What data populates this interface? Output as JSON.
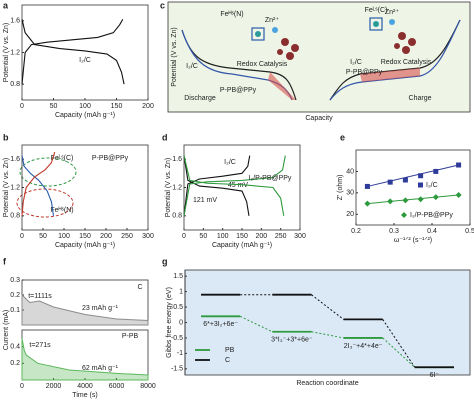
{
  "chart_data": [
    {
      "panel": "a",
      "type": "line",
      "x_label": "Capacity (mAh g⁻¹)",
      "y_label": "Potential (V vs. Zn)",
      "xlim": [
        0,
        200
      ],
      "xticks": [
        0,
        50,
        100,
        150,
        200
      ],
      "ylim": [
        0.6,
        1.8
      ],
      "yticks": [
        0.8,
        1.2,
        1.6
      ],
      "annotations": [
        "I₂/C"
      ],
      "series": [
        {
          "color": "#111111",
          "x": [
            0,
            5,
            15,
            40,
            80,
            120,
            145,
            155,
            160
          ],
          "values": [
            0.8,
            1.2,
            1.3,
            1.33,
            1.36,
            1.39,
            1.45,
            1.55,
            1.62
          ]
        },
        {
          "color": "#111111",
          "x": [
            0,
            5,
            20,
            60,
            100,
            135,
            150,
            158,
            162
          ],
          "values": [
            1.62,
            1.45,
            1.3,
            1.25,
            1.22,
            1.18,
            1.1,
            0.95,
            0.8
          ]
        }
      ]
    },
    {
      "panel": "b",
      "type": "line",
      "x_label": "Capacity (mAh g⁻¹)",
      "y_label": "Potential (V vs. Zn)",
      "xlim": [
        0,
        300
      ],
      "xticks": [
        0,
        50,
        100,
        150,
        200,
        250,
        300
      ],
      "ylim": [
        0.6,
        1.8
      ],
      "yticks": [
        0.8,
        1.2,
        1.6
      ],
      "annotations": [
        "P-PB@PPy",
        "Feᴸˢ(C)",
        "Feᴴˢ(N)"
      ],
      "series": [
        {
          "color": "#2a5caa",
          "x": [
            0,
            5,
            20,
            40,
            60,
            70,
            75
          ],
          "values": [
            1.65,
            1.5,
            1.4,
            1.3,
            1.15,
            1.0,
            0.8
          ]
        },
        {
          "color": "#c0392b",
          "x": [
            0,
            3,
            10,
            30,
            55,
            70,
            78
          ],
          "values": [
            0.8,
            1.0,
            1.2,
            1.35,
            1.45,
            1.55,
            1.7
          ]
        }
      ]
    },
    {
      "panel": "c",
      "type": "diagram",
      "x_label": "Capacity",
      "y_label": "Potential (V vs. Zn)",
      "labels": [
        "Feᴴˢ(N)",
        "Zn²⁺",
        "Redox Catalysis",
        "I₂/C",
        "P-PB@PPy",
        "Discharge",
        "Feᴸˢ(C)",
        "Zn²⁺",
        "I₂/C",
        "P-PB@PPy",
        "Redox Catalysis",
        "Charge"
      ]
    },
    {
      "panel": "d",
      "type": "line",
      "x_label": "Capacity (mAh g⁻¹)",
      "y_label": "Potential (V vs. Zn)",
      "xlim": [
        0,
        300
      ],
      "xticks": [
        0,
        50,
        100,
        150,
        200,
        250,
        300
      ],
      "ylim": [
        0.6,
        1.8
      ],
      "yticks": [
        0.8,
        1.2,
        1.6
      ],
      "annotations": [
        "45 mV",
        "121 mV"
      ],
      "series": [
        {
          "name": "I₂/C",
          "color": "#111111",
          "x": [
            0,
            10,
            40,
            100,
            150,
            165,
            170
          ],
          "values": [
            0.8,
            1.25,
            1.32,
            1.36,
            1.4,
            1.5,
            1.65
          ]
        },
        {
          "color": "#111111",
          "x": [
            0,
            10,
            40,
            100,
            150,
            162,
            168
          ],
          "values": [
            1.65,
            1.3,
            1.22,
            1.19,
            1.15,
            1.0,
            0.8
          ]
        },
        {
          "name": "I₂/P-PB@PPy",
          "color": "#2e9a3e",
          "x": [
            0,
            15,
            60,
            150,
            230,
            255,
            262
          ],
          "values": [
            0.8,
            1.25,
            1.28,
            1.3,
            1.34,
            1.45,
            1.65
          ]
        },
        {
          "color": "#2e9a3e",
          "x": [
            0,
            15,
            60,
            150,
            230,
            250,
            258
          ],
          "values": [
            1.65,
            1.3,
            1.26,
            1.24,
            1.2,
            1.05,
            0.8
          ]
        }
      ]
    },
    {
      "panel": "e",
      "type": "scatter",
      "x_label": "ω⁻¹ᐟ² (s⁻¹ᐟ²)",
      "y_label": "Z' (ohm)",
      "xlim": [
        0.2,
        0.5
      ],
      "xticks": [
        0.2,
        0.3,
        0.4,
        0.5
      ],
      "ylim": [
        15,
        50
      ],
      "yticks": [
        20,
        30,
        40
      ],
      "series": [
        {
          "name": "I₂/C",
          "color": "#2f3b9a",
          "marker": "square",
          "x": [
            0.23,
            0.29,
            0.33,
            0.37,
            0.41,
            0.47
          ],
          "values": [
            33,
            35,
            36,
            38,
            40,
            43
          ]
        },
        {
          "name": "I₂/P-PB@PPy",
          "color": "#2e9a3e",
          "marker": "diamond",
          "x": [
            0.23,
            0.29,
            0.33,
            0.37,
            0.41,
            0.47
          ],
          "values": [
            25,
            26,
            26.5,
            27,
            28,
            29
          ]
        }
      ]
    },
    {
      "panel": "f",
      "type": "area",
      "y_label": "Current (mA)",
      "xlim": [
        0,
        8000
      ],
      "ylim": [
        0,
        0.3
      ],
      "yticks": [
        0.1,
        0.2,
        0.3
      ],
      "annotations": [
        "t=1111s",
        "23 mAh g⁻¹",
        "C"
      ],
      "series": [
        {
          "color": "#8c8c8c",
          "x": [
            0,
            500,
            1111,
            2000,
            4000,
            6000,
            8000
          ],
          "values": [
            0.2,
            0.15,
            0.16,
            0.12,
            0.07,
            0.04,
            0.03
          ]
        }
      ]
    },
    {
      "type": "area",
      "x_label": "Time (s)",
      "xlim": [
        0,
        8000
      ],
      "xticks": [
        0,
        2000,
        4000,
        6000,
        8000
      ],
      "ylim": [
        0,
        0.6
      ],
      "yticks": [
        0.2,
        0.4
      ],
      "annotations": [
        "t=271s",
        "62 mAh g⁻¹",
        "P-PB"
      ],
      "series": [
        {
          "color": "#5cb85c",
          "x": [
            0,
            150,
            271,
            1000,
            3000,
            6000,
            8000
          ],
          "values": [
            0.5,
            0.35,
            0.3,
            0.2,
            0.12,
            0.08,
            0.06
          ]
        }
      ]
    },
    {
      "panel": "g",
      "type": "energy_levels",
      "x_label": "Reaction coordinate",
      "y_label": "Gibbs free energy (eV)",
      "ylim": [
        -1.7,
        1.7
      ],
      "yticks": [
        1.5,
        1.0,
        0.5,
        0.0,
        -0.5,
        -1.0,
        -1.5
      ],
      "step_labels": [
        "6*+3I₂+6e⁻",
        "3*I₃⁻+3*+6e⁻",
        "2I₃⁻+4*+4e⁻",
        "6I⁻"
      ],
      "series": [
        {
          "name": "PB",
          "color": "#2e9a3e",
          "values": [
            0.2,
            -0.3,
            -0.5,
            -1.45
          ]
        },
        {
          "name": "C",
          "color": "#111111",
          "values": [
            0.9,
            0.9,
            0.1,
            -1.45
          ]
        }
      ]
    }
  ]
}
